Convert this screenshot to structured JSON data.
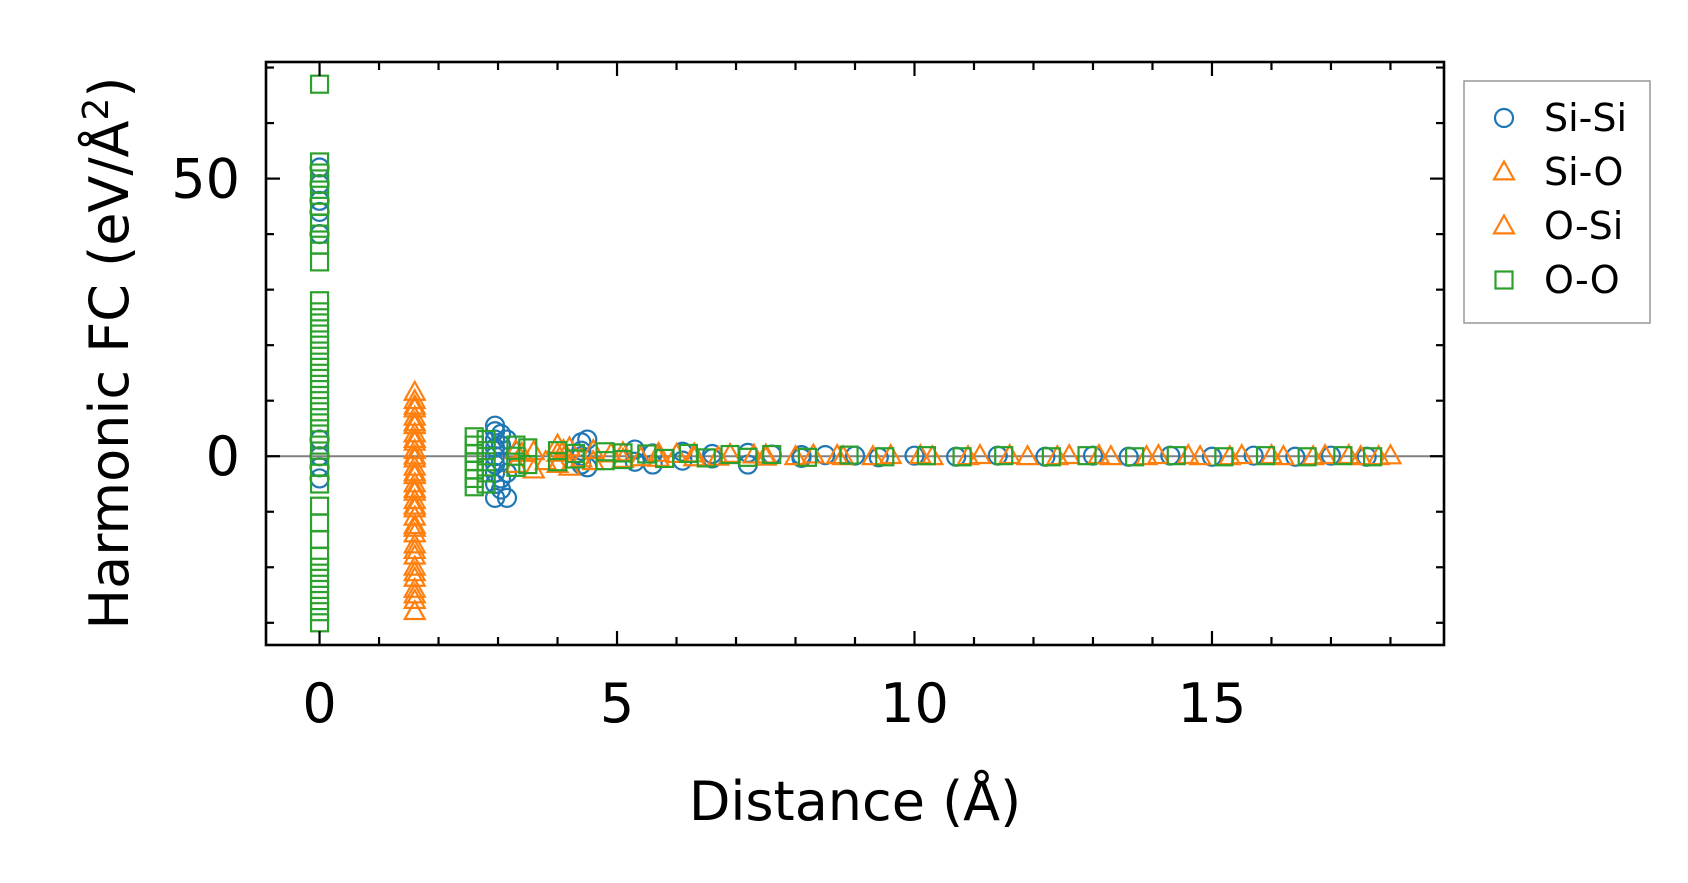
{
  "chart_data": {
    "type": "scatter",
    "title": "",
    "xlabel": "Distance (Å)",
    "ylabel_main": "Harmonic FC (eV/Å",
    "ylabel_sup": "2",
    "ylabel_close": ")",
    "xlim": [
      -0.9,
      18.9
    ],
    "ylim": [
      -34,
      71
    ],
    "x_ticks": [
      0,
      5,
      10,
      15
    ],
    "x_tick_labels": [
      "0",
      "5",
      "10",
      "15"
    ],
    "y_ticks": [
      0,
      50
    ],
    "y_tick_labels": [
      "0",
      "50"
    ],
    "x_minor_step": 1,
    "y_minor_step": 10,
    "zero_line": 0,
    "grid": false,
    "legend_position": "outside-right-top",
    "series": [
      {
        "name": "Si-Si",
        "marker": "circle",
        "color": "#1f77b4",
        "points": [
          [
            0,
            52
          ],
          [
            0,
            49
          ],
          [
            0,
            46
          ],
          [
            0,
            44
          ],
          [
            0,
            40
          ],
          [
            0,
            3
          ],
          [
            0,
            0
          ],
          [
            0,
            -2
          ],
          [
            0,
            -4
          ],
          [
            2.95,
            5.5
          ],
          [
            2.95,
            4.5
          ],
          [
            2.95,
            3
          ],
          [
            2.95,
            1.5
          ],
          [
            2.95,
            0
          ],
          [
            2.95,
            -1.5
          ],
          [
            2.95,
            -3
          ],
          [
            2.95,
            -5
          ],
          [
            2.95,
            -7.5
          ],
          [
            3.05,
            4
          ],
          [
            3.05,
            2
          ],
          [
            3.05,
            -1
          ],
          [
            3.05,
            -4
          ],
          [
            3.05,
            -6
          ],
          [
            3.15,
            3
          ],
          [
            3.15,
            -3
          ],
          [
            3.15,
            -7.5
          ],
          [
            4.4,
            2.5
          ],
          [
            4.4,
            1
          ],
          [
            4.4,
            0
          ],
          [
            4.4,
            -1.5
          ],
          [
            4.5,
            3
          ],
          [
            4.5,
            -2
          ],
          [
            5.3,
            1.2
          ],
          [
            5.3,
            -1
          ],
          [
            5.6,
            0.5
          ],
          [
            5.6,
            -1.5
          ],
          [
            6.1,
            0.8
          ],
          [
            6.1,
            -0.8
          ],
          [
            6.6,
            0.4
          ],
          [
            6.6,
            -0.4
          ],
          [
            7.2,
            0.6
          ],
          [
            7.2,
            -1.5
          ],
          [
            7.6,
            0.3
          ],
          [
            8.1,
            0.2
          ],
          [
            8.1,
            -0.3
          ],
          [
            8.5,
            0.2
          ],
          [
            9.0,
            0.1
          ],
          [
            9.4,
            -0.2
          ],
          [
            10.0,
            0.1
          ],
          [
            10.7,
            -0.1
          ],
          [
            11.4,
            0.1
          ],
          [
            12.2,
            -0.1
          ],
          [
            13.0,
            0.1
          ],
          [
            13.6,
            -0.1
          ],
          [
            14.3,
            0.1
          ],
          [
            15.0,
            -0.1
          ],
          [
            15.7,
            0.1
          ],
          [
            16.4,
            -0.1
          ],
          [
            17.0,
            0.1
          ],
          [
            17.6,
            -0.1
          ]
        ]
      },
      {
        "name": "Si-O",
        "marker": "triangle",
        "color": "#ff7f0e",
        "points": [
          [
            1.6,
            11.5
          ],
          [
            1.6,
            10
          ],
          [
            1.6,
            8.5
          ],
          [
            1.6,
            7
          ],
          [
            1.6,
            5.5
          ],
          [
            1.6,
            4
          ],
          [
            1.6,
            2.5
          ],
          [
            1.6,
            1
          ],
          [
            1.6,
            -0.5
          ],
          [
            1.6,
            -2
          ],
          [
            1.6,
            -3.5
          ],
          [
            1.6,
            -5
          ],
          [
            1.6,
            -6.5
          ],
          [
            1.6,
            -8
          ],
          [
            1.6,
            -9.5
          ],
          [
            1.6,
            -11
          ],
          [
            1.6,
            -12.5
          ],
          [
            1.6,
            -14
          ],
          [
            1.6,
            -16
          ],
          [
            1.6,
            -18
          ],
          [
            1.6,
            -20
          ],
          [
            1.6,
            -22
          ],
          [
            1.6,
            -24
          ],
          [
            1.6,
            -26
          ],
          [
            1.6,
            -28
          ],
          [
            3.3,
            1
          ],
          [
            3.3,
            -1.5
          ],
          [
            3.6,
            0.8
          ],
          [
            3.6,
            -2.5
          ],
          [
            4.0,
            2
          ],
          [
            4.0,
            0.5
          ],
          [
            4.0,
            -1.5
          ],
          [
            4.2,
            1.5
          ],
          [
            4.2,
            -2
          ],
          [
            4.6,
            1
          ],
          [
            4.6,
            -1
          ],
          [
            5.1,
            0.6
          ],
          [
            5.1,
            -0.6
          ],
          [
            5.7,
            0.5
          ],
          [
            5.7,
            -0.4
          ],
          [
            6.3,
            0.4
          ],
          [
            6.3,
            -0.3
          ],
          [
            6.9,
            0.3
          ],
          [
            7.5,
            0.2
          ],
          [
            7.5,
            -0.2
          ],
          [
            8.3,
            0.2
          ],
          [
            8.8,
            -0.1
          ],
          [
            9.6,
            0.1
          ],
          [
            10.3,
            -0.1
          ],
          [
            11.1,
            0.1
          ],
          [
            11.9,
            -0.1
          ],
          [
            12.6,
            0.1
          ],
          [
            13.3,
            -0.1
          ],
          [
            14.1,
            0.1
          ],
          [
            14.8,
            -0.1
          ],
          [
            15.5,
            0.1
          ],
          [
            16.2,
            -0.1
          ],
          [
            16.9,
            0.1
          ],
          [
            17.5,
            -0.1
          ],
          [
            18.0,
            0.05
          ]
        ]
      },
      {
        "name": "O-Si",
        "marker": "triangle",
        "color": "#ff7f0e",
        "points": [
          [
            1.6,
            9
          ],
          [
            1.6,
            6
          ],
          [
            1.6,
            3
          ],
          [
            1.6,
            0
          ],
          [
            1.6,
            -3
          ],
          [
            1.6,
            -6
          ],
          [
            1.6,
            -9
          ],
          [
            1.6,
            -13
          ],
          [
            1.6,
            -17
          ],
          [
            1.6,
            -21
          ],
          [
            1.6,
            -25
          ],
          [
            3.4,
            0.5
          ],
          [
            3.8,
            -1
          ],
          [
            4.1,
            1
          ],
          [
            4.4,
            -0.5
          ],
          [
            4.9,
            0.4
          ],
          [
            5.4,
            -0.3
          ],
          [
            6.0,
            0.3
          ],
          [
            6.7,
            -0.2
          ],
          [
            7.3,
            0.2
          ],
          [
            8.0,
            -0.1
          ],
          [
            8.7,
            0.1
          ],
          [
            9.3,
            -0.1
          ],
          [
            10.1,
            0.1
          ],
          [
            10.9,
            -0.1
          ],
          [
            11.6,
            0.1
          ],
          [
            12.4,
            -0.1
          ],
          [
            13.1,
            0.1
          ],
          [
            13.9,
            -0.1
          ],
          [
            14.6,
            0.1
          ],
          [
            15.3,
            -0.1
          ],
          [
            16.0,
            0.1
          ],
          [
            16.7,
            -0.1
          ],
          [
            17.3,
            0.1
          ],
          [
            17.8,
            -0.1
          ]
        ]
      },
      {
        "name": "O-O",
        "marker": "square",
        "color": "#2ca02c",
        "points": [
          [
            0,
            67
          ],
          [
            0,
            53
          ],
          [
            0,
            51
          ],
          [
            0,
            49
          ],
          [
            0,
            47
          ],
          [
            0,
            45
          ],
          [
            0,
            42
          ],
          [
            0,
            40
          ],
          [
            0,
            38
          ],
          [
            0,
            35
          ],
          [
            0,
            28
          ],
          [
            0,
            26
          ],
          [
            0,
            24
          ],
          [
            0,
            22
          ],
          [
            0,
            20
          ],
          [
            0,
            18
          ],
          [
            0,
            16
          ],
          [
            0,
            14
          ],
          [
            0,
            12
          ],
          [
            0,
            10
          ],
          [
            0,
            8
          ],
          [
            0,
            6
          ],
          [
            0,
            4
          ],
          [
            0,
            2
          ],
          [
            0,
            0
          ],
          [
            0,
            -2
          ],
          [
            0,
            -5
          ],
          [
            0,
            -9
          ],
          [
            0,
            -12
          ],
          [
            0,
            -15
          ],
          [
            0,
            -18
          ],
          [
            0,
            -20
          ],
          [
            0,
            -22
          ],
          [
            0,
            -24
          ],
          [
            0,
            -26
          ],
          [
            0,
            -28
          ],
          [
            0,
            -30
          ],
          [
            2.6,
            3.5
          ],
          [
            2.6,
            2
          ],
          [
            2.6,
            0.5
          ],
          [
            2.6,
            -1
          ],
          [
            2.6,
            -2.5
          ],
          [
            2.6,
            -4
          ],
          [
            2.6,
            -5.5
          ],
          [
            2.8,
            3
          ],
          [
            2.8,
            1
          ],
          [
            2.8,
            -1
          ],
          [
            2.8,
            -3
          ],
          [
            2.8,
            -5
          ],
          [
            3.3,
            2
          ],
          [
            3.3,
            0
          ],
          [
            3.3,
            -2
          ],
          [
            3.5,
            1.5
          ],
          [
            3.5,
            -1.5
          ],
          [
            4.0,
            1
          ],
          [
            4.0,
            -1
          ],
          [
            4.3,
            0.5
          ],
          [
            4.3,
            -0.5
          ],
          [
            4.8,
            0.8
          ],
          [
            4.8,
            -0.8
          ],
          [
            5.1,
            0.6
          ],
          [
            5.1,
            -0.6
          ],
          [
            5.5,
            0.4
          ],
          [
            5.8,
            -0.4
          ],
          [
            6.2,
            0.5
          ],
          [
            6.5,
            -0.3
          ],
          [
            6.9,
            0.3
          ],
          [
            7.2,
            -0.2
          ],
          [
            7.6,
            0.3
          ],
          [
            8.2,
            -0.2
          ],
          [
            8.9,
            0.2
          ],
          [
            9.5,
            -0.1
          ],
          [
            10.2,
            0.1
          ],
          [
            10.8,
            -0.1
          ],
          [
            11.5,
            0.1
          ],
          [
            12.3,
            -0.1
          ],
          [
            12.9,
            0.1
          ],
          [
            13.7,
            -0.1
          ],
          [
            14.4,
            0.1
          ],
          [
            15.2,
            -0.1
          ],
          [
            15.9,
            0.1
          ],
          [
            16.6,
            -0.1
          ],
          [
            17.2,
            0.1
          ],
          [
            17.7,
            -0.1
          ]
        ]
      }
    ],
    "legend": [
      {
        "label": "Si-Si",
        "marker": "circle",
        "color": "#1f77b4"
      },
      {
        "label": "Si-O",
        "marker": "triangle",
        "color": "#ff7f0e"
      },
      {
        "label": "O-Si",
        "marker": "triangle",
        "color": "#ff7f0e"
      },
      {
        "label": "O-O",
        "marker": "square",
        "color": "#2ca02c"
      }
    ]
  }
}
